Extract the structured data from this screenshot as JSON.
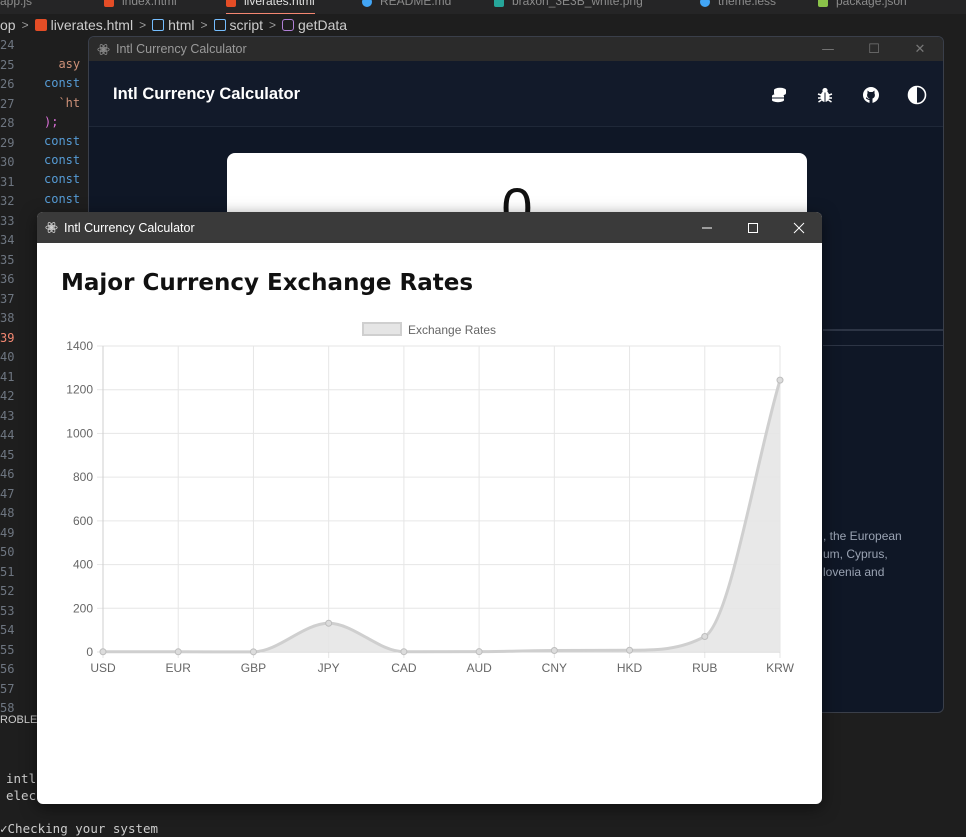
{
  "vscode": {
    "tabs": [
      "app.js",
      "index.html",
      "liverates.html",
      "README.md",
      "braxon_3E3B_white.png",
      "theme.less",
      "package.json"
    ],
    "breadcrumb": [
      "op",
      "liverates.html",
      "html",
      "script",
      "getData"
    ],
    "line_numbers": [
      "24",
      "25",
      "26",
      "27",
      "28",
      "29",
      "30",
      "31",
      "32",
      "33",
      "34",
      "35",
      "36",
      "37",
      "38",
      "39",
      "40",
      "41",
      "42",
      "43",
      "44",
      "45",
      "46",
      "47",
      "48",
      "49",
      "50",
      "51",
      "52",
      "53",
      "54",
      "55",
      "56",
      "57",
      "58"
    ],
    "highlight_line": "39",
    "code_lines": [
      "  ",
      "  asy",
      "const",
      "  `ht",
      ");",
      "const",
      "const",
      "const",
      "const"
    ],
    "panel_tab": "ROBLEM",
    "terminal_lines": [
      "intl",
      "elec"
    ],
    "terminal_status": "Checking your system"
  },
  "back_window": {
    "title": "Intl Currency Calculator",
    "app_title": "Intl Currency Calculator",
    "header_icons": [
      "coins-icon",
      "bug-icon",
      "github-icon",
      "theme-toggle-icon"
    ],
    "card_value": "0",
    "partial_text": [
      ", the European",
      "um, Cyprus,",
      "lovenia and"
    ]
  },
  "front_window": {
    "title": "Intl Currency Calculator",
    "heading": "Major Currency Exchange Rates"
  },
  "chart_data": {
    "type": "area",
    "title": "",
    "legend": [
      "Exchange Rates"
    ],
    "legend_position": "top",
    "grid": true,
    "categories": [
      "USD",
      "EUR",
      "GBP",
      "JPY",
      "CAD",
      "AUD",
      "CNY",
      "HKD",
      "RUB",
      "KRW"
    ],
    "series": [
      {
        "name": "Exchange Rates",
        "values": [
          1,
          0.92,
          0.79,
          131.5,
          1.36,
          1.5,
          6.9,
          7.85,
          71,
          1244
        ]
      }
    ],
    "ylim": [
      0,
      1400
    ],
    "yticks": [
      0,
      200,
      400,
      600,
      800,
      1000,
      1200,
      1400
    ],
    "colors": {
      "fill": "#e5e5e5",
      "line": "#cfcfcf",
      "point": "#bdbdbd"
    }
  }
}
